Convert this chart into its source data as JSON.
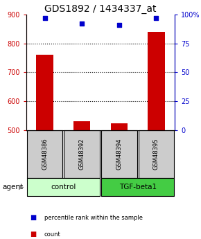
{
  "title": "GDS1892 / 1434337_at",
  "samples": [
    "GSM48386",
    "GSM48392",
    "GSM48394",
    "GSM48395"
  ],
  "counts": [
    760,
    530,
    525,
    840
  ],
  "percentiles": [
    97,
    92,
    91,
    97
  ],
  "ylim_left": [
    500,
    900
  ],
  "ylim_right": [
    0,
    100
  ],
  "yticks_left": [
    500,
    600,
    700,
    800,
    900
  ],
  "yticks_right": [
    0,
    25,
    50,
    75,
    100
  ],
  "ytick_labels_right": [
    "0",
    "25",
    "50",
    "75",
    "100%"
  ],
  "bar_color": "#cc0000",
  "dot_color": "#0000cc",
  "groups": [
    {
      "label": "control",
      "samples": [
        0,
        1
      ],
      "color": "#ccffcc"
    },
    {
      "label": "TGF-beta1",
      "samples": [
        2,
        3
      ],
      "color": "#44cc44"
    }
  ],
  "agent_label": "agent",
  "legend_items": [
    {
      "label": "count",
      "color": "#cc0000"
    },
    {
      "label": "percentile rank within the sample",
      "color": "#0000cc"
    }
  ],
  "bar_width": 0.45,
  "sample_box_color": "#cccccc",
  "title_fontsize": 10,
  "axis_color_left": "#cc0000",
  "axis_color_right": "#0000cc",
  "gridline_ticks": [
    600,
    700,
    800
  ]
}
